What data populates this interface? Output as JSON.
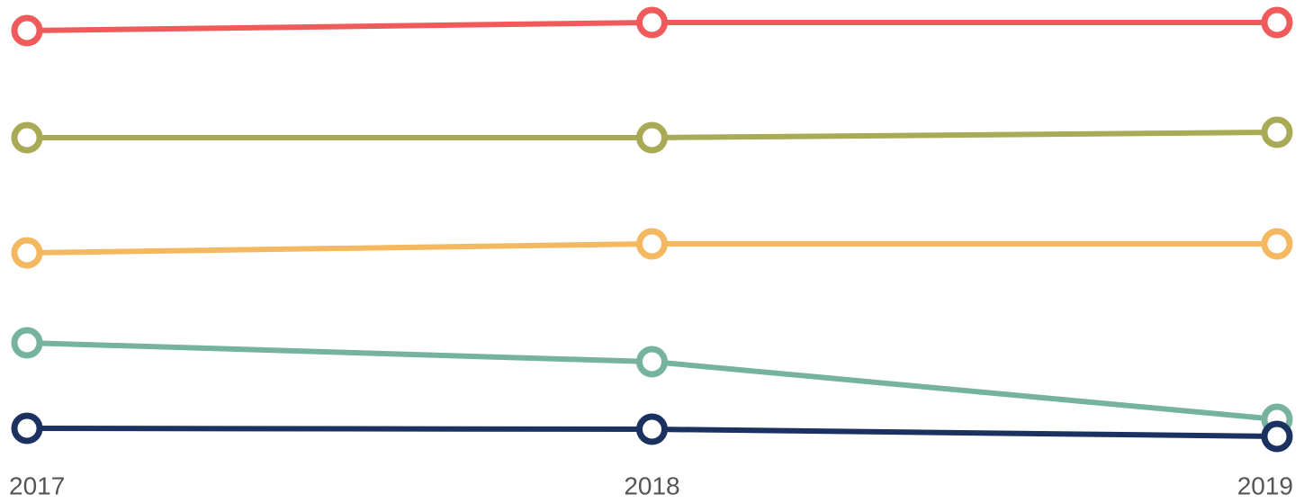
{
  "chart_data": {
    "type": "line",
    "categories": [
      "2017",
      "2018",
      "2019"
    ],
    "series": [
      {
        "color": "#ef5b5b",
        "values": [
          93.2,
          95,
          95
        ]
      },
      {
        "color": "#a8aa55",
        "values": [
          69.4,
          69.4,
          70.6
        ]
      },
      {
        "color": "#f4b860",
        "values": [
          43.8,
          45.8,
          45.8
        ]
      },
      {
        "color": "#76b39d",
        "values": [
          23.8,
          19.6,
          6.8
        ]
      },
      {
        "color": "#1b3260",
        "values": [
          4.8,
          4.6,
          3
        ]
      }
    ],
    "ylim": [
      0,
      100
    ]
  }
}
